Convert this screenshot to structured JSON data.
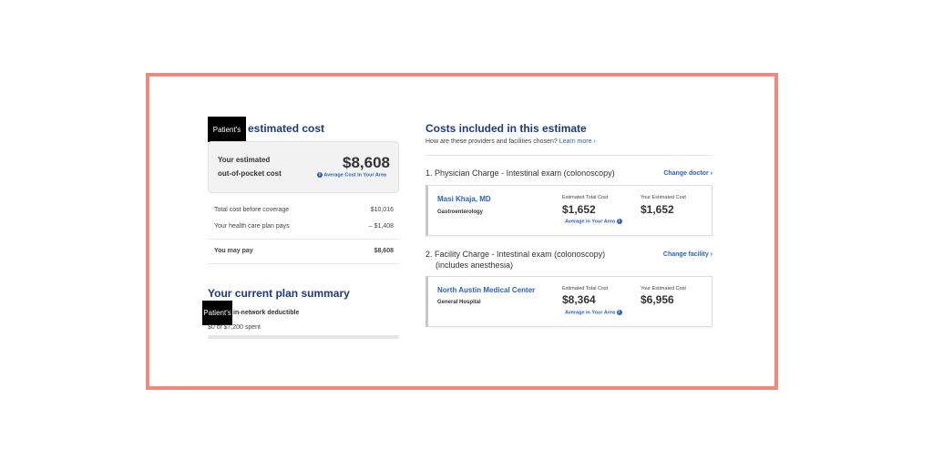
{
  "left": {
    "redacted_name": "Patient's",
    "title_suffix": "estimated cost",
    "card": {
      "label_line1": "Your estimated",
      "label_line2": "out-of-pocket cost",
      "amount": "$8,608",
      "average_link": "Average Cost In Your Area"
    },
    "rows": [
      {
        "label": "Total cost before coverage",
        "value": "$10,016"
      },
      {
        "label": "Your health care plan pays",
        "value": "– $1,408"
      }
    ],
    "total": {
      "label": "You may pay",
      "value": "$8,608"
    },
    "plan_summary": {
      "title": "Your current plan summary",
      "redacted_name": "Patient's",
      "deductible_label": "in-network deductible",
      "spent_text": "$0 of $7,200 spent",
      "spent_fraction": 0.0
    }
  },
  "right": {
    "title": "Costs included in this estimate",
    "subtitle": "How are these providers and facilities chosen?",
    "learn_more": "Learn more ›",
    "sections": [
      {
        "number": "1.",
        "line1": "Physician Charge - Intestinal exam (colonoscopy)",
        "line2": "",
        "change_link": "Change doctor ›",
        "provider_name": "Masi Khaja, MD",
        "provider_type": "Gastroenterology",
        "est_total_label": "Estimated Total Cost",
        "est_total": "$1,652",
        "your_est_label": "Your Estimated Cost",
        "your_est": "$1,652",
        "average_link": "Average in Your Area"
      },
      {
        "number": "2.",
        "line1": "Facility Charge - Intestinal exam (colonoscopy)",
        "line2": "(includes anesthesia)",
        "change_link": "Change facility ›",
        "provider_name": "North Austin Medical Center",
        "provider_type": "General Hospital",
        "est_total_label": "Estimated Total Cost",
        "est_total": "$8,364",
        "your_est_label": "Your Estimated Cost",
        "your_est": "$6,956",
        "average_link": "Average in Your Area"
      }
    ]
  },
  "colors": {
    "frame_border": "#f0897b",
    "title_blue": "#1e3a7b",
    "link_blue": "#2a63b8"
  },
  "icons": {
    "info": "info-icon"
  }
}
